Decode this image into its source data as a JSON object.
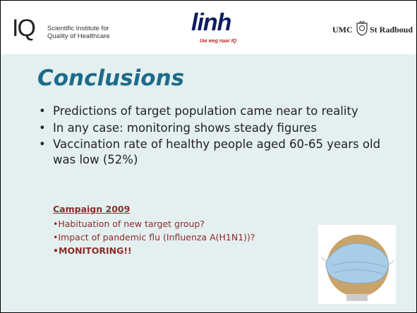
{
  "header": {
    "iq_mark": "IQ",
    "iq_text": [
      "Scientific Institute for",
      "Quality of Healthcare"
    ],
    "linh": "linh",
    "linh_tagline": "Uw weg naar IQ",
    "umc": "UMC",
    "umc_name": "St Radboud"
  },
  "title": "Conclusions",
  "bullets": [
    "Predictions of target population came near to reality",
    "In any case: monitoring shows steady figures",
    "Vaccination rate of healthy people aged 60-65 years old was low (52%)"
  ],
  "campaign": {
    "title": "Campaign 2009",
    "items": [
      "Habituation of new target group?",
      "Impact of pandemic flu (Influenza A(H1N1))?",
      "MONITORING!!"
    ]
  }
}
